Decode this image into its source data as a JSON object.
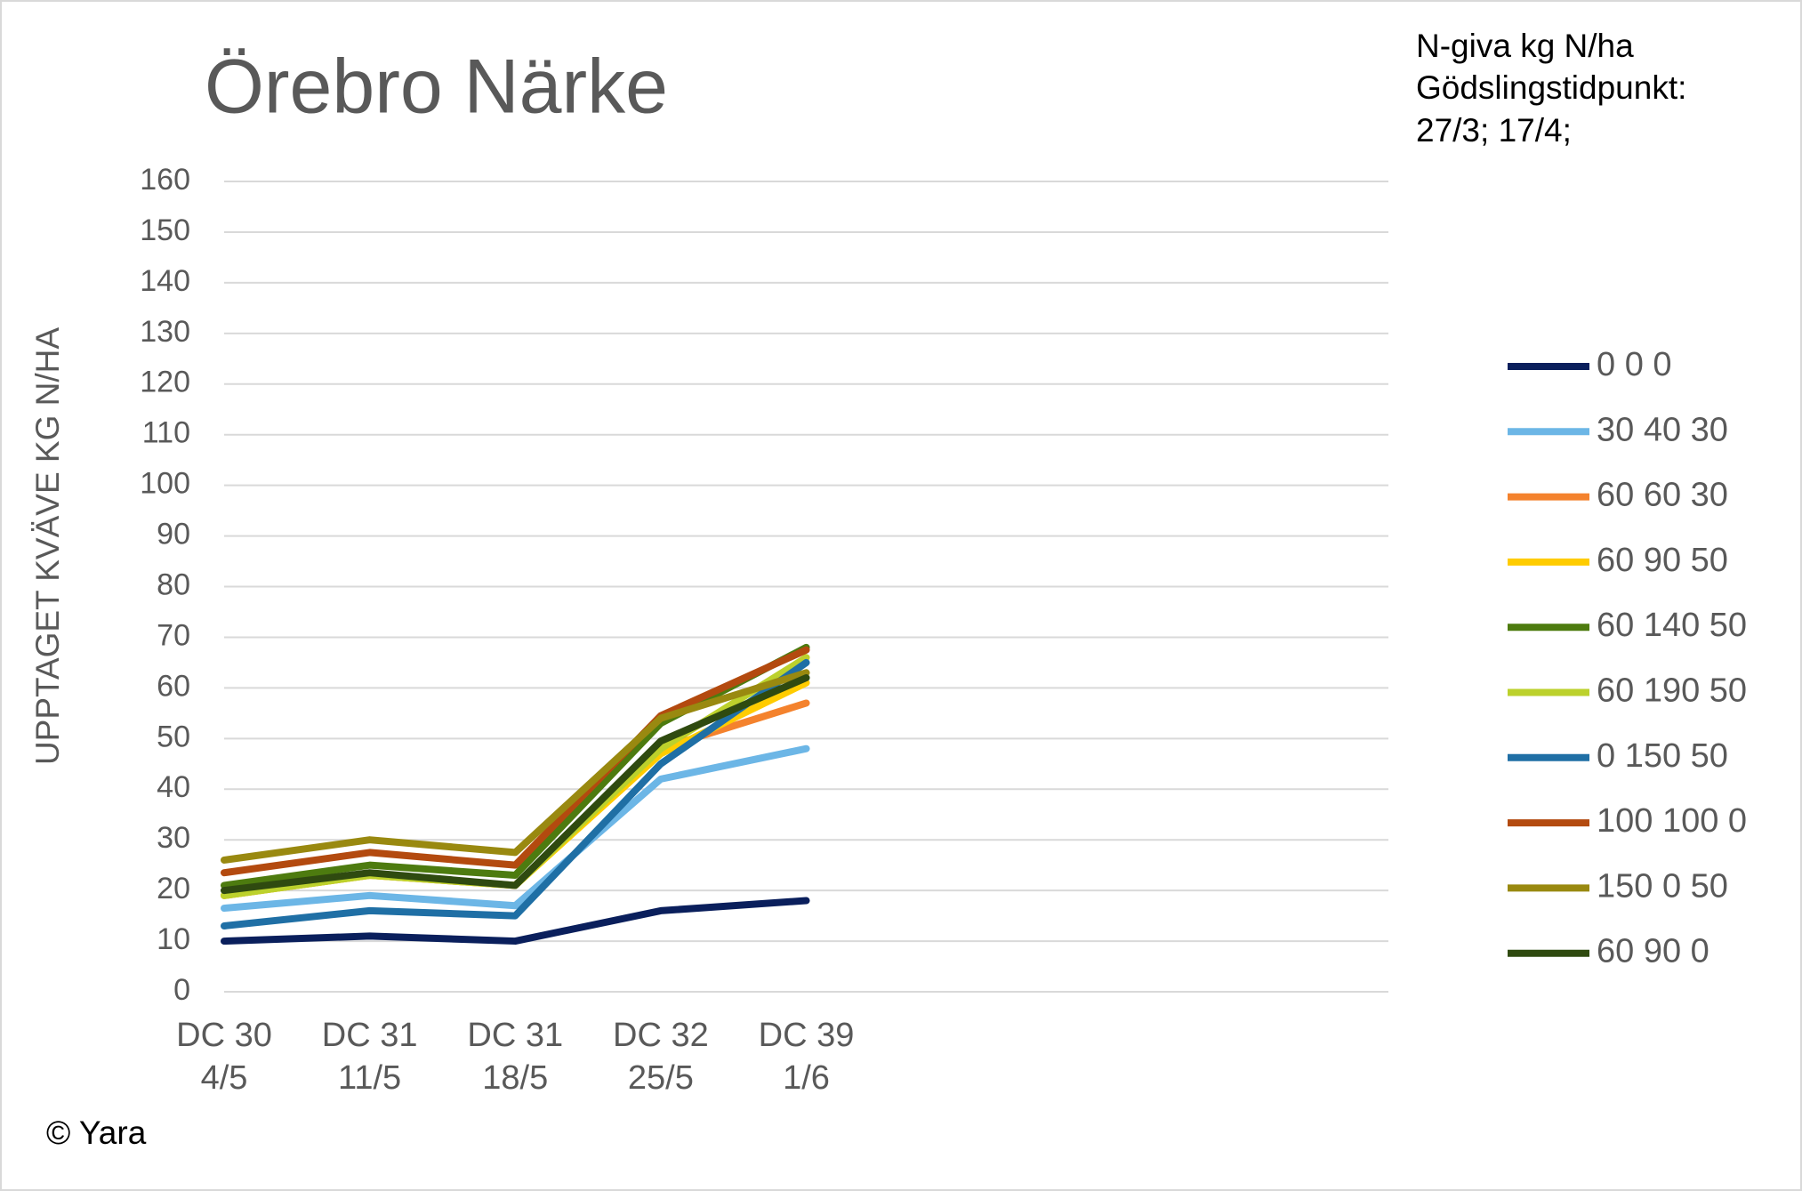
{
  "chart_data": {
    "type": "line",
    "title": "Örebro Närke",
    "annotation": [
      "N-giva kg N/ha",
      "Gödslingstidpunkt:",
      "27/3; 17/4;"
    ],
    "y_label": "UPPTAGET KVÄVE KG N/HA",
    "source": "© Yara",
    "categories": [
      "DC 30\n4/5",
      "DC 31\n11/5",
      "DC 31\n18/5",
      "DC 32\n25/5",
      "DC 39\n1/6",
      null,
      null,
      null,
      null
    ],
    "series": [
      {
        "name": "0 0 0",
        "color": "#0a1f5c",
        "values": [
          10,
          11,
          10,
          16,
          18,
          null,
          null,
          null,
          null
        ]
      },
      {
        "name": "30 40 30",
        "color": "#6cb6e6",
        "values": [
          16.5,
          19,
          17,
          42,
          48,
          null,
          null,
          null,
          null
        ]
      },
      {
        "name": "60 60 30",
        "color": "#f4822d",
        "values": [
          19,
          23,
          21,
          48,
          57,
          null,
          null,
          null,
          null
        ]
      },
      {
        "name": "60 90 50",
        "color": "#ffcc00",
        "values": [
          19,
          23,
          21,
          47,
          61,
          null,
          null,
          null,
          null
        ]
      },
      {
        "name": "60 140 50",
        "color": "#4d7b0f",
        "values": [
          21,
          25,
          23,
          53,
          68,
          null,
          null,
          null,
          null
        ]
      },
      {
        "name": "60 190 50",
        "color": "#bcd12c",
        "values": [
          19,
          23,
          21,
          48,
          66,
          null,
          null,
          null,
          null
        ]
      },
      {
        "name": "0 150 50",
        "color": "#1f6fa5",
        "values": [
          13,
          16,
          15,
          45,
          65,
          null,
          null,
          null,
          null
        ]
      },
      {
        "name": "100 100 0",
        "color": "#b34a0f",
        "values": [
          23.5,
          27.5,
          25,
          54.5,
          67.5,
          null,
          null,
          null,
          null
        ]
      },
      {
        "name": "150 0 50",
        "color": "#998910",
        "values": [
          26,
          30,
          27.5,
          54,
          63,
          null,
          null,
          null,
          null
        ]
      },
      {
        "name": "60 90 0",
        "color": "#2f4a10",
        "values": [
          20,
          23.5,
          21,
          49.5,
          62,
          null,
          null,
          null,
          null
        ]
      }
    ],
    "ylim": [
      0,
      160
    ],
    "yticks": [
      0,
      10,
      20,
      30,
      40,
      50,
      60,
      70,
      80,
      90,
      100,
      110,
      120,
      130,
      140,
      150,
      160
    ],
    "grid": true,
    "legend": "right"
  }
}
